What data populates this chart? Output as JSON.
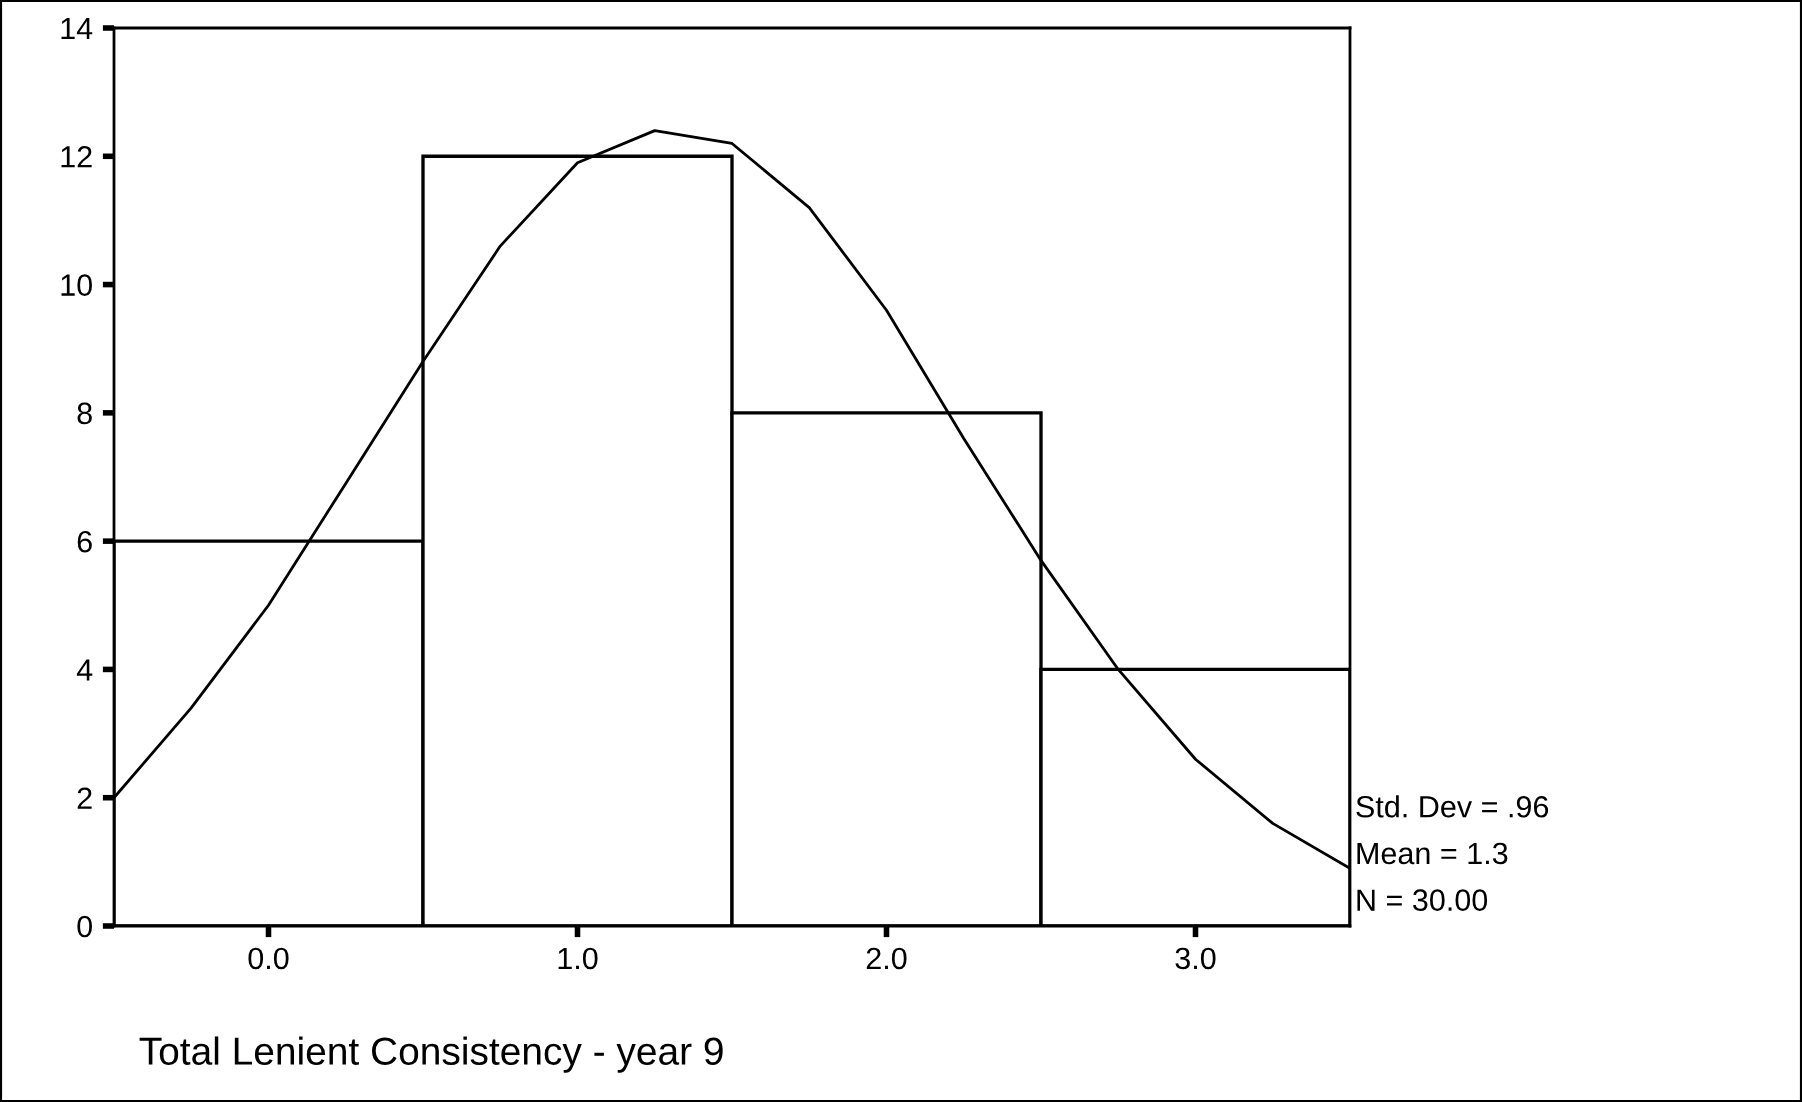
{
  "chart_data": {
    "type": "histogram",
    "xlabel": "Total Lenient Consistency - year 9",
    "bins": [
      -0.5,
      0.5,
      1.5,
      2.5,
      3.5
    ],
    "values": [
      6,
      12,
      8,
      4
    ],
    "color": "#ffffff",
    "series": [
      {
        "type": "line",
        "color": "#000000",
        "x": [
          -0.5,
          -0.25,
          0,
          0.25,
          0.5,
          0.75,
          1.0,
          1.25,
          1.5,
          1.75,
          2.0,
          2.25,
          2.5,
          2.75,
          3.0,
          3.25,
          3.5
        ],
        "values": [
          2.0,
          3.4,
          5.0,
          6.9,
          8.8,
          10.6,
          11.9,
          12.4,
          12.2,
          11.2,
          9.6,
          7.6,
          5.7,
          4.0,
          2.6,
          1.6,
          0.9
        ]
      }
    ],
    "xlim": [
      -0.5,
      3.5
    ],
    "xticks": [
      {
        "value": 0,
        "label": "0.0"
      },
      {
        "value": 1,
        "label": "1.0"
      },
      {
        "value": 2,
        "label": "2.0"
      },
      {
        "value": 3,
        "label": "3.0"
      }
    ],
    "ylim": [
      0,
      14
    ],
    "yticks": [
      0,
      2,
      4,
      6,
      8,
      10,
      12,
      14
    ],
    "grid": false,
    "annotations": [
      "Std. Dev = .96",
      "Mean = 1.3",
      "N = 30.00"
    ]
  }
}
